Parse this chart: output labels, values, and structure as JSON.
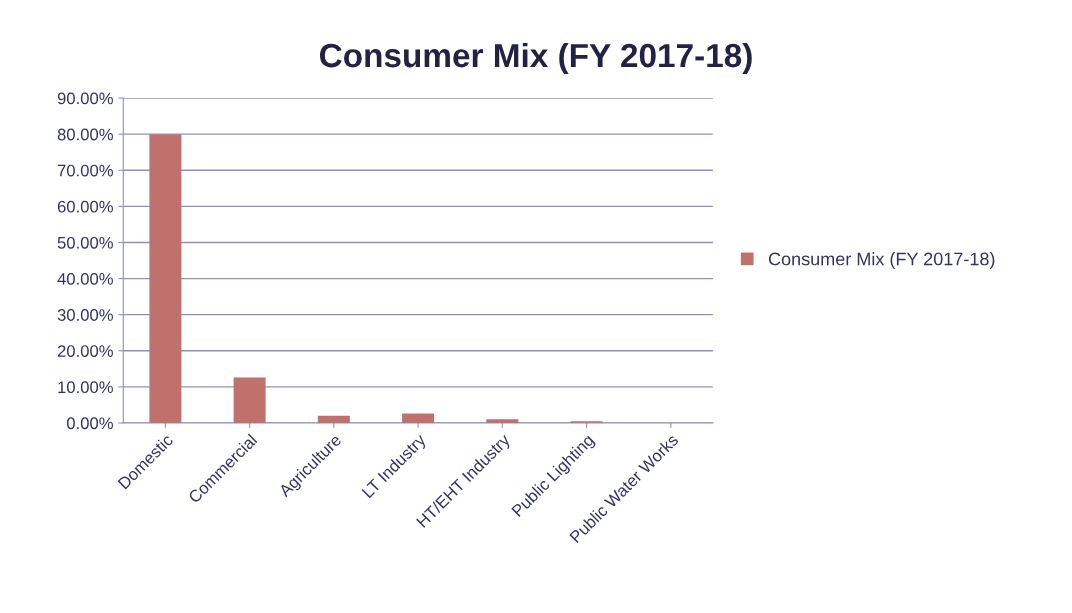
{
  "chart_data": {
    "type": "bar",
    "title": "Consumer Mix (FY 2017-18)",
    "categories": [
      "Domestic",
      "Commercial",
      "Agriculture",
      "LT Industry",
      "HT/EHT Industry",
      "Public Lighting",
      "Public Water Works"
    ],
    "series": [
      {
        "name": "Consumer Mix (FY 2017-18)",
        "color": "#c0716c",
        "values": [
          0.8,
          0.126,
          0.02,
          0.026,
          0.01,
          0.005,
          0.0
        ]
      }
    ],
    "ylim": [
      0,
      0.9
    ],
    "yticks": [
      {
        "value": 0,
        "label": "0.00%"
      },
      {
        "value": 0.1,
        "label": "10.00%"
      },
      {
        "value": 0.2,
        "label": "20.00%"
      },
      {
        "value": 0.3,
        "label": "30.00%"
      },
      {
        "value": 0.4,
        "label": "40.00%"
      },
      {
        "value": 0.5,
        "label": "50.00%"
      },
      {
        "value": 0.6,
        "label": "60.00%"
      },
      {
        "value": 0.7,
        "label": "70.00%"
      },
      {
        "value": 0.8,
        "label": "80.00%"
      },
      {
        "value": 0.9,
        "label": "90.00%"
      }
    ],
    "grid": "y",
    "legend": "right"
  }
}
